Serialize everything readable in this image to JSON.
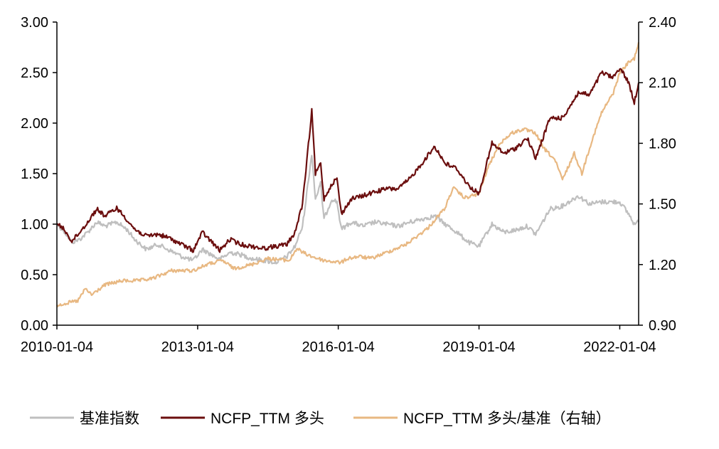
{
  "chart_data": {
    "type": "line",
    "title": "",
    "xlabel": "",
    "ylabel": "",
    "x_ticks": [
      "2010-01-04",
      "2013-01-04",
      "2016-01-04",
      "2019-01-04",
      "2022-01-04"
    ],
    "x_range": [
      "2010-01-04",
      "2022-05-31"
    ],
    "y_left": {
      "ylim": [
        0,
        3
      ],
      "ticks": [
        "0.00",
        "0.50",
        "1.00",
        "1.50",
        "2.00",
        "2.50",
        "3.00"
      ]
    },
    "y_right": {
      "ylim": [
        0.9,
        2.4
      ],
      "ticks": [
        "0.90",
        "1.20",
        "1.50",
        "1.80",
        "2.10",
        "2.40"
      ]
    },
    "grid": false,
    "legend_position": "bottom",
    "series": [
      {
        "name": "基准指数",
        "axis": "left",
        "color": "#bfbfbf",
        "points": [
          [
            "2010-01-04",
            1.0
          ],
          [
            "2010-03-01",
            0.93
          ],
          [
            "2010-05-01",
            0.82
          ],
          [
            "2010-07-01",
            0.85
          ],
          [
            "2010-09-01",
            0.92
          ],
          [
            "2010-11-10",
            1.02
          ],
          [
            "2011-01-15",
            0.98
          ],
          [
            "2011-04-15",
            1.02
          ],
          [
            "2011-07-01",
            0.95
          ],
          [
            "2011-09-01",
            0.85
          ],
          [
            "2011-12-01",
            0.75
          ],
          [
            "2012-03-01",
            0.8
          ],
          [
            "2012-06-01",
            0.74
          ],
          [
            "2012-09-01",
            0.68
          ],
          [
            "2012-12-01",
            0.64
          ],
          [
            "2013-02-10",
            0.75
          ],
          [
            "2013-06-25",
            0.65
          ],
          [
            "2013-09-15",
            0.72
          ],
          [
            "2013-12-01",
            0.7
          ],
          [
            "2014-03-01",
            0.66
          ],
          [
            "2014-06-01",
            0.64
          ],
          [
            "2014-09-01",
            0.62
          ],
          [
            "2014-12-01",
            0.68
          ],
          [
            "2015-02-01",
            0.78
          ],
          [
            "2015-04-01",
            0.98
          ],
          [
            "2015-06-12",
            1.7
          ],
          [
            "2015-07-10",
            1.25
          ],
          [
            "2015-08-20",
            1.4
          ],
          [
            "2015-09-15",
            1.05
          ],
          [
            "2015-11-15",
            1.25
          ],
          [
            "2015-12-25",
            1.22
          ],
          [
            "2016-01-28",
            0.95
          ],
          [
            "2016-04-15",
            1.02
          ],
          [
            "2016-07-15",
            0.98
          ],
          [
            "2016-10-15",
            1.02
          ],
          [
            "2017-01-15",
            1.0
          ],
          [
            "2017-04-15",
            0.98
          ],
          [
            "2017-07-15",
            1.02
          ],
          [
            "2017-10-15",
            1.05
          ],
          [
            "2018-01-25",
            1.08
          ],
          [
            "2018-04-15",
            1.0
          ],
          [
            "2018-07-15",
            0.92
          ],
          [
            "2018-10-15",
            0.82
          ],
          [
            "2019-01-04",
            0.78
          ],
          [
            "2019-04-15",
            1.0
          ],
          [
            "2019-07-15",
            0.92
          ],
          [
            "2019-10-15",
            0.94
          ],
          [
            "2020-01-15",
            0.98
          ],
          [
            "2020-03-20",
            0.9
          ],
          [
            "2020-07-10",
            1.15
          ],
          [
            "2020-10-15",
            1.18
          ],
          [
            "2021-02-15",
            1.28
          ],
          [
            "2021-05-15",
            1.2
          ],
          [
            "2021-08-15",
            1.22
          ],
          [
            "2021-11-15",
            1.22
          ],
          [
            "2022-01-04",
            1.22
          ],
          [
            "2022-03-15",
            1.1
          ],
          [
            "2022-04-27",
            1.0
          ],
          [
            "2022-05-31",
            1.02
          ]
        ]
      },
      {
        "name": "NCFP_TTM 多头",
        "axis": "left",
        "color": "#6b0e0e",
        "points": [
          [
            "2010-01-04",
            1.0
          ],
          [
            "2010-03-01",
            0.95
          ],
          [
            "2010-05-01",
            0.83
          ],
          [
            "2010-07-01",
            0.92
          ],
          [
            "2010-09-01",
            1.02
          ],
          [
            "2010-11-10",
            1.15
          ],
          [
            "2011-01-15",
            1.08
          ],
          [
            "2011-04-15",
            1.16
          ],
          [
            "2011-07-01",
            1.05
          ],
          [
            "2011-09-01",
            0.95
          ],
          [
            "2011-12-01",
            0.88
          ],
          [
            "2012-03-01",
            0.9
          ],
          [
            "2012-06-01",
            0.86
          ],
          [
            "2012-09-01",
            0.8
          ],
          [
            "2012-12-01",
            0.74
          ],
          [
            "2013-02-10",
            0.92
          ],
          [
            "2013-06-25",
            0.74
          ],
          [
            "2013-09-15",
            0.85
          ],
          [
            "2013-12-01",
            0.8
          ],
          [
            "2014-03-01",
            0.78
          ],
          [
            "2014-06-01",
            0.76
          ],
          [
            "2014-09-01",
            0.78
          ],
          [
            "2014-12-01",
            0.8
          ],
          [
            "2015-02-01",
            0.92
          ],
          [
            "2015-04-01",
            1.2
          ],
          [
            "2015-06-12",
            2.12
          ],
          [
            "2015-07-10",
            1.5
          ],
          [
            "2015-08-20",
            1.6
          ],
          [
            "2015-09-15",
            1.25
          ],
          [
            "2015-11-15",
            1.4
          ],
          [
            "2015-12-25",
            1.45
          ],
          [
            "2016-01-28",
            1.1
          ],
          [
            "2016-04-15",
            1.25
          ],
          [
            "2016-07-15",
            1.28
          ],
          [
            "2016-10-15",
            1.32
          ],
          [
            "2017-01-15",
            1.35
          ],
          [
            "2017-04-15",
            1.35
          ],
          [
            "2017-07-15",
            1.45
          ],
          [
            "2017-10-15",
            1.6
          ],
          [
            "2018-01-25",
            1.77
          ],
          [
            "2018-04-15",
            1.6
          ],
          [
            "2018-07-15",
            1.55
          ],
          [
            "2018-10-15",
            1.38
          ],
          [
            "2019-01-04",
            1.3
          ],
          [
            "2019-04-15",
            1.8
          ],
          [
            "2019-07-15",
            1.7
          ],
          [
            "2019-10-15",
            1.75
          ],
          [
            "2020-01-15",
            1.85
          ],
          [
            "2020-03-20",
            1.65
          ],
          [
            "2020-07-10",
            2.05
          ],
          [
            "2020-10-15",
            2.05
          ],
          [
            "2021-02-15",
            2.3
          ],
          [
            "2021-05-15",
            2.28
          ],
          [
            "2021-08-15",
            2.5
          ],
          [
            "2021-11-15",
            2.45
          ],
          [
            "2022-01-04",
            2.55
          ],
          [
            "2022-03-15",
            2.4
          ],
          [
            "2022-04-27",
            2.2
          ],
          [
            "2022-05-31",
            2.4
          ]
        ]
      },
      {
        "name": "NCFP_TTM 多头/基准（右轴）",
        "axis": "right",
        "color": "#e8b882",
        "points": [
          [
            "2010-01-04",
            1.0
          ],
          [
            "2010-06-15",
            1.02
          ],
          [
            "2010-08-15",
            1.08
          ],
          [
            "2010-10-01",
            1.05
          ],
          [
            "2011-01-15",
            1.1
          ],
          [
            "2011-06-01",
            1.12
          ],
          [
            "2011-10-01",
            1.12
          ],
          [
            "2012-01-15",
            1.13
          ],
          [
            "2012-06-15",
            1.17
          ],
          [
            "2012-12-01",
            1.17
          ],
          [
            "2013-03-15",
            1.2
          ],
          [
            "2013-07-15",
            1.22
          ],
          [
            "2013-10-15",
            1.18
          ],
          [
            "2014-03-01",
            1.2
          ],
          [
            "2014-07-01",
            1.23
          ],
          [
            "2014-12-20",
            1.22
          ],
          [
            "2015-02-15",
            1.28
          ],
          [
            "2015-04-01",
            1.26
          ],
          [
            "2015-06-12",
            1.24
          ],
          [
            "2015-09-15",
            1.22
          ],
          [
            "2016-01-28",
            1.21
          ],
          [
            "2016-03-15",
            1.23
          ],
          [
            "2016-06-15",
            1.24
          ],
          [
            "2016-09-15",
            1.23
          ],
          [
            "2017-01-15",
            1.26
          ],
          [
            "2017-06-15",
            1.3
          ],
          [
            "2017-12-01",
            1.38
          ],
          [
            "2018-04-15",
            1.48
          ],
          [
            "2018-06-15",
            1.58
          ],
          [
            "2018-09-15",
            1.53
          ],
          [
            "2019-01-04",
            1.55
          ],
          [
            "2019-03-15",
            1.68
          ],
          [
            "2019-06-15",
            1.8
          ],
          [
            "2019-09-15",
            1.85
          ],
          [
            "2019-12-15",
            1.87
          ],
          [
            "2020-03-20",
            1.85
          ],
          [
            "2020-05-15",
            1.78
          ],
          [
            "2020-08-15",
            1.72
          ],
          [
            "2020-10-15",
            1.62
          ],
          [
            "2021-01-15",
            1.75
          ],
          [
            "2021-03-15",
            1.65
          ],
          [
            "2021-05-15",
            1.78
          ],
          [
            "2021-08-15",
            1.95
          ],
          [
            "2021-11-15",
            2.05
          ],
          [
            "2022-01-04",
            2.15
          ],
          [
            "2022-03-15",
            2.2
          ],
          [
            "2022-04-27",
            2.22
          ],
          [
            "2022-05-31",
            2.3
          ]
        ]
      }
    ]
  }
}
